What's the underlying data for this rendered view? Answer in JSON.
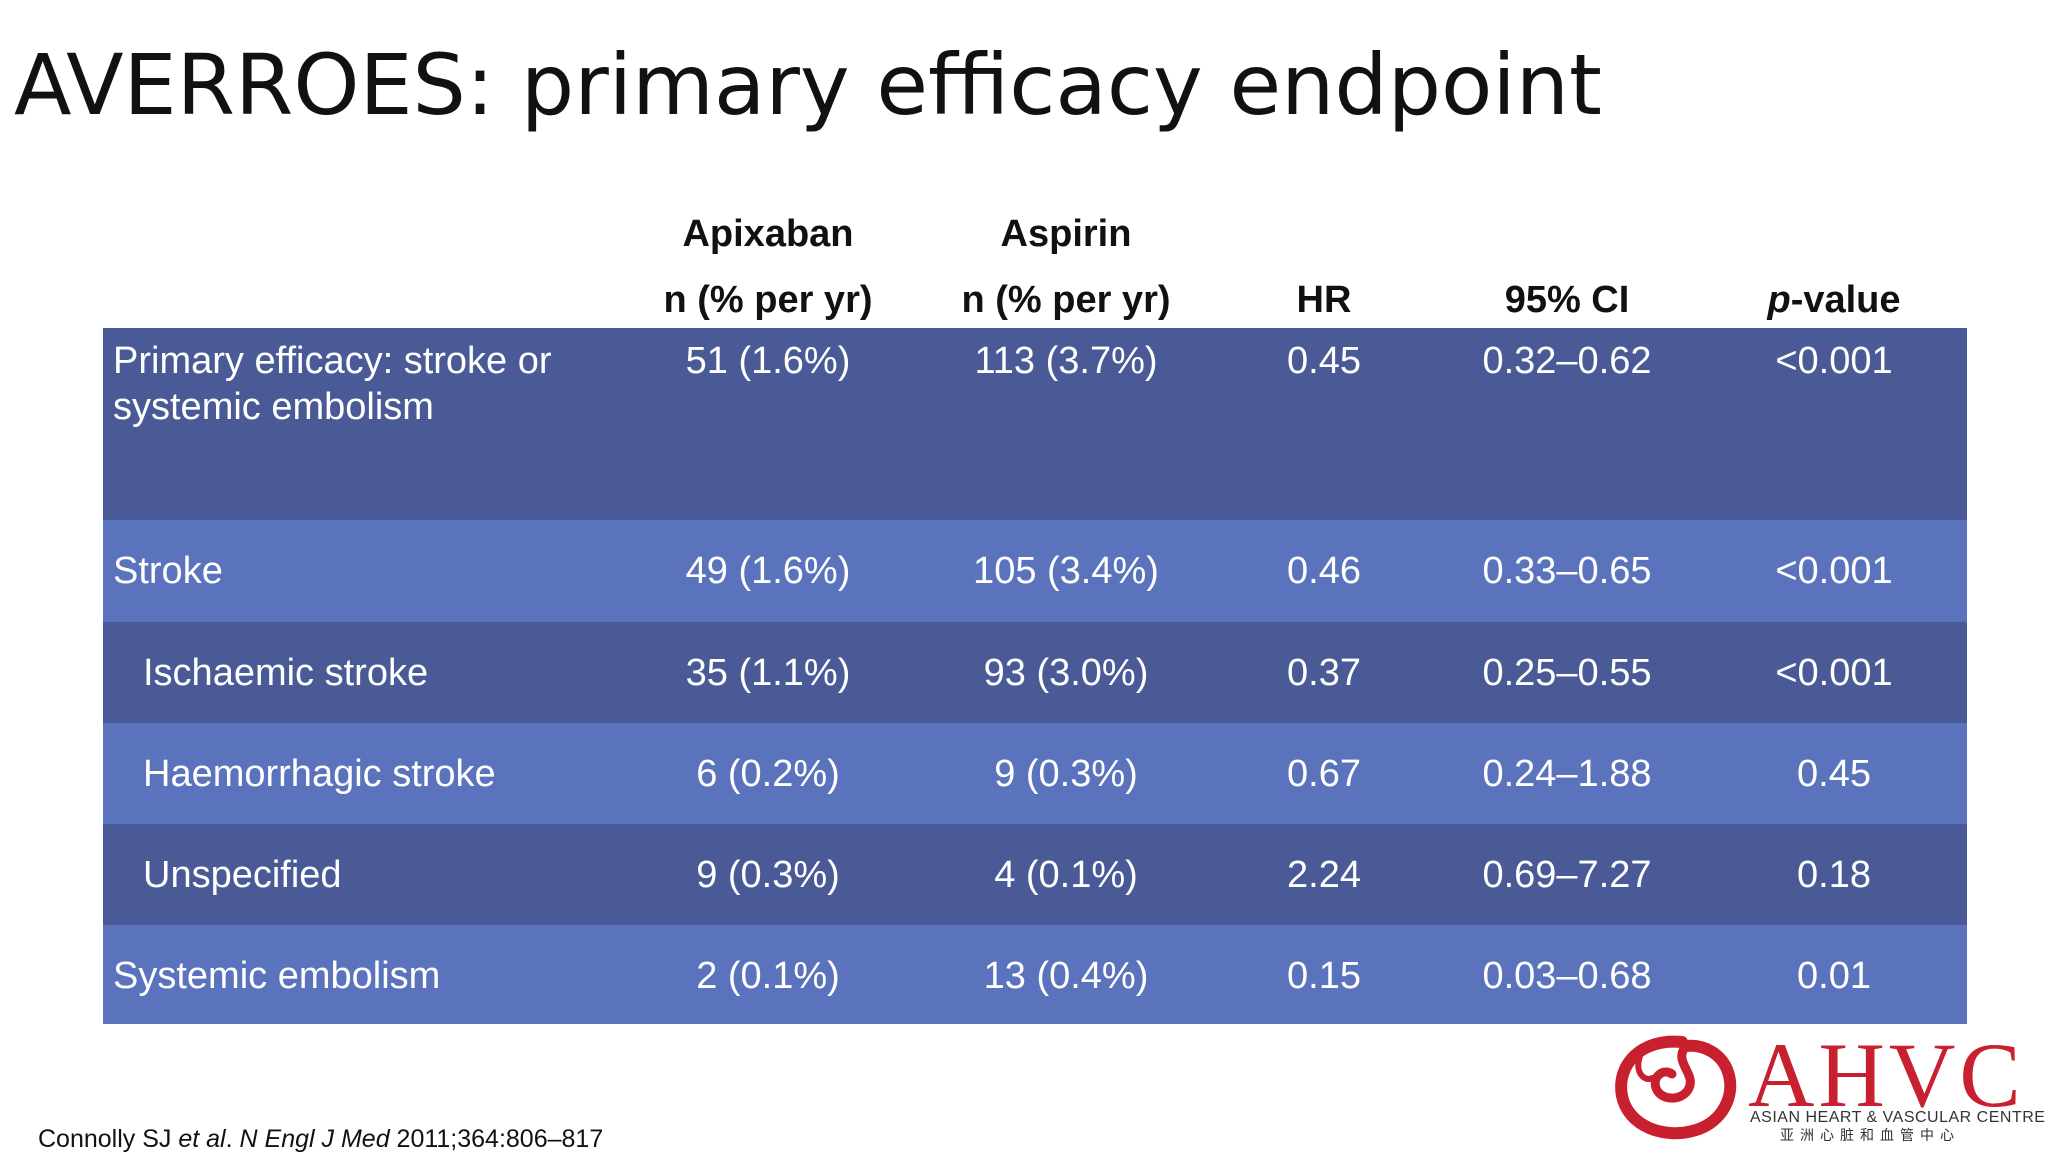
{
  "title": "AVERROES: primary efficacy endpoint",
  "table": {
    "headers": {
      "apixaban_line1": "Apixaban",
      "apixaban_line2": "n (% per yr)",
      "aspirin_line1": "Aspirin",
      "aspirin_line2": "n (% per yr)",
      "hr": "HR",
      "ci": "95% CI",
      "pvalue_italic": "p",
      "pvalue_rest": "-value"
    },
    "rows": [
      {
        "label": "Primary efficacy: stroke or systemic embolism",
        "apixaban": "51 (1.6%)",
        "aspirin": "113 (3.7%)",
        "hr": "0.45",
        "ci": "0.32–0.62",
        "p": "<0.001"
      },
      {
        "label": "Stroke",
        "apixaban": "49 (1.6%)",
        "aspirin": "105 (3.4%)",
        "hr": "0.46",
        "ci": "0.33–0.65",
        "p": "<0.001"
      },
      {
        "label": "Ischaemic stroke",
        "apixaban": "35 (1.1%)",
        "aspirin": "93 (3.0%)",
        "hr": "0.37",
        "ci": "0.25–0.55",
        "p": "<0.001"
      },
      {
        "label": "Haemorrhagic stroke",
        "apixaban": "6 (0.2%)",
        "aspirin": "9 (0.3%)",
        "hr": "0.67",
        "ci": "0.24–1.88",
        "p": "0.45"
      },
      {
        "label": "Unspecified",
        "apixaban": "9 (0.3%)",
        "aspirin": "4 (0.1%)",
        "hr": "2.24",
        "ci": "0.69–7.27",
        "p": "0.18"
      },
      {
        "label": "Systemic embolism",
        "apixaban": "2 (0.1%)",
        "aspirin": "13 (0.4%)",
        "hr": "0.15",
        "ci": "0.03–0.68",
        "p": "0.01"
      }
    ],
    "colors": {
      "row_dark": "#495a97",
      "row_light": "#5b73bd"
    }
  },
  "citation": {
    "authors": "Connolly SJ ",
    "etal": "et al",
    "dot": ". ",
    "journal": "N Engl J Med",
    "ref": " 2011;364:806–817"
  },
  "logo": {
    "name": "AHVC",
    "subtitle": "ASIAN HEART & VASCULAR CENTRE",
    "chinese": "亚洲心脏和血管中心",
    "color": "#c8202f",
    "icon": "swirl-logo-icon"
  }
}
